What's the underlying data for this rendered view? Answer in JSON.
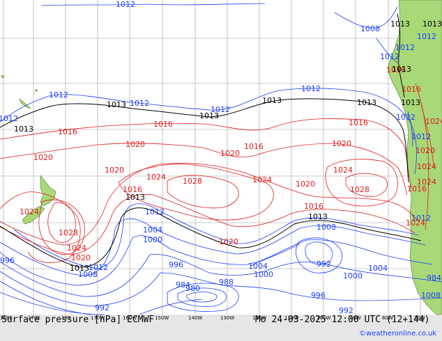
{
  "title": "Surface pressure [hPa] ECMWF",
  "datetime": "Mo 24-03-2025 12:00 UTC (12+144)",
  "credit": "©weatheronline.co.uk",
  "longitude_labels": [
    "160E",
    "170E",
    "180",
    "170W",
    "160W",
    "150W",
    "140W",
    "130W",
    "120W",
    "110W",
    "100W",
    "90W",
    "80W",
    "70W"
  ],
  "colors": {
    "background": "#e6e6e6",
    "ocean": "#ffffff",
    "land": "#a8d878",
    "isobar_low": "#1a3cff",
    "isobar_high": "#e11a1a",
    "isobar_1013": "#000000"
  },
  "contour_labels": {
    "blue": [
      "1012",
      "1012",
      "1012",
      "1012",
      "1012",
      "1012",
      "1012",
      "1012",
      "1008",
      "1012",
      "1012",
      "1012",
      "1012",
      "1004",
      "1000",
      "996",
      "1012",
      "1008",
      "996",
      "1004",
      "1000",
      "992",
      "1008",
      "984",
      "980",
      "988",
      "996",
      "1000",
      "1004",
      "992",
      "992",
      "984",
      "1008",
      "1012"
    ],
    "red": [
      "1016",
      "1016",
      "1020",
      "1020",
      "1016",
      "1016",
      "1020",
      "1020",
      "1024",
      "1024",
      "1028",
      "1024",
      "1020",
      "1024",
      "1020",
      "1016",
      "1028",
      "1024",
      "1016",
      "1020",
      "1024",
      "1020",
      "1024",
      "1028",
      "1016",
      "1020",
      "1016",
      "1024",
      "1024",
      "1016"
    ],
    "black": [
      "1013",
      "1013",
      "1013",
      "1013",
      "1013",
      "1013",
      "1013",
      "1013",
      "1013",
      "1013",
      "1013",
      "1013"
    ]
  }
}
